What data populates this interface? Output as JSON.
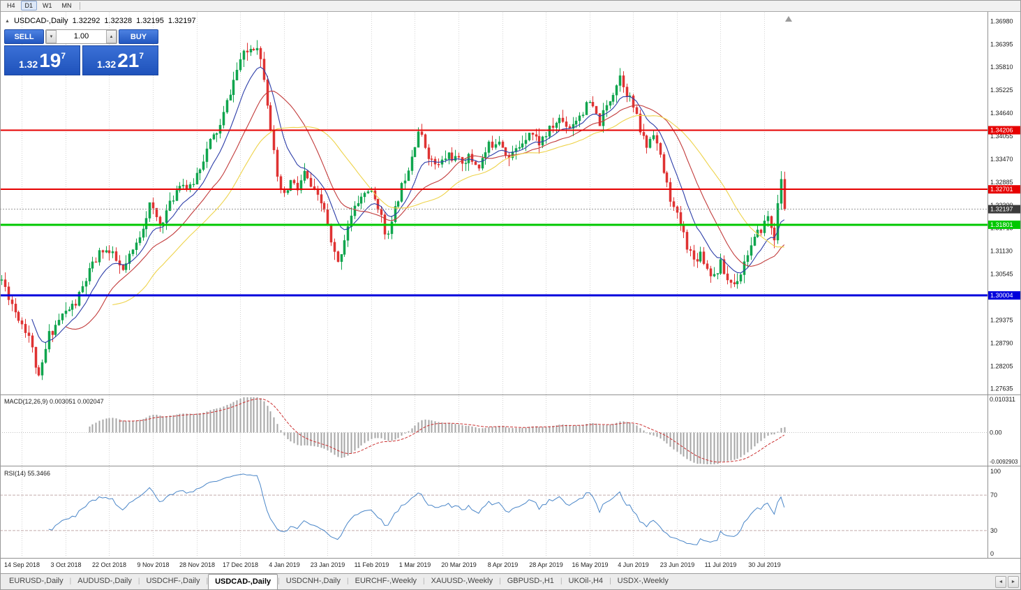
{
  "colors": {
    "up": "#10a54e",
    "down": "#df3333",
    "ma_fast": "#2c3da8",
    "ma_mid": "#c23b3b",
    "ma_slow": "#eed34a",
    "rsi_line": "#4a86c8",
    "rsi_levels": "#c4aaaa",
    "macd_hist": "#a6a6a6",
    "macd_signal": "#cc3333",
    "grid": "#d2d2d2",
    "bid_line": "#9a9a9a",
    "current_badge": "#3c3c3c",
    "separator": "#909090"
  },
  "toolbar": {
    "periods": [
      {
        "label": "H4",
        "active": false
      },
      {
        "label": "D1",
        "active": true
      },
      {
        "label": "W1",
        "active": false
      },
      {
        "label": "MN",
        "active": false
      }
    ]
  },
  "icons": {
    "symbol_marker": "▲",
    "volume_up": "▲",
    "volume_down": "▼"
  },
  "chart_header": {
    "symbol": "USDCAD-,Daily",
    "open": "1.32292",
    "high": "1.32328",
    "low": "1.32195",
    "close": "1.32197"
  },
  "trade_panel": {
    "sell_label": "SELL",
    "buy_label": "BUY",
    "volume": "1.00",
    "sell_price": {
      "prefix": "1.32",
      "big": "19",
      "sup": "7"
    },
    "buy_price": {
      "prefix": "1.32",
      "big": "21",
      "sup": "7"
    }
  },
  "price_axis": {
    "ticks": [
      "1.36980",
      "1.36395",
      "1.35810",
      "1.35225",
      "1.34640",
      "1.34055",
      "1.33470",
      "1.32885",
      "1.32300",
      "1.31715",
      "1.31130",
      "1.30545",
      "1.29960",
      "1.29375",
      "1.28790",
      "1.28205",
      "1.27635"
    ]
  },
  "macd_panel": {
    "title": "MACD(12,26,9) 0.003051 0.002047",
    "axis_max_label": "0.010311",
    "axis_zero_label": "0.00",
    "axis_min_label": "-0.0092903"
  },
  "rsi_panel": {
    "title": "RSI(14) 55.3466",
    "axis_labels": [
      100,
      70,
      30,
      0
    ]
  },
  "date_axis": {
    "labels": [
      "14 Sep 2018",
      "3 Oct 2018",
      "22 Oct 2018",
      "9 Nov 2018",
      "28 Nov 2018",
      "17 Dec 2018",
      "4 Jan 2019",
      "23 Jan 2019",
      "11 Feb 2019",
      "1 Mar 2019",
      "20 Mar 2019",
      "8 Apr 2019",
      "28 Apr 2019",
      "16 May 2019",
      "4 Jun 2019",
      "23 Jun 2019",
      "11 Jul 2019",
      "30 Jul 2019"
    ]
  },
  "tabs": {
    "active_index": 3,
    "scroll_left": "◄",
    "scroll_right": "►",
    "items": [
      "EURUSD-,Daily",
      "AUDUSD-,Daily",
      "USDCHF-,Daily",
      "USDCAD-,Daily",
      "USDCNH-,Daily",
      "EURCHF-,Weekly",
      "XAUUSD-,Weekly",
      "GBPUSD-,H1",
      "UKOil-,H4",
      "USDX-,Weekly"
    ]
  },
  "chart_data": {
    "type": "candlestick",
    "symbol": "USDCAD",
    "timeframe": "Daily",
    "last_ohlc": {
      "open": 1.32292,
      "high": 1.32328,
      "low": 1.32195,
      "close": 1.32197
    },
    "n_candles": 234,
    "total_slots": 294,
    "price_top": 1.372,
    "price_bottom": 1.275,
    "seed": 11,
    "noise": 0.0013,
    "wick": 0.0022,
    "close_waypoints": [
      [
        0,
        1.304
      ],
      [
        4,
        1.296
      ],
      [
        8,
        1.29
      ],
      [
        11,
        1.2785
      ],
      [
        14,
        1.29
      ],
      [
        18,
        1.295
      ],
      [
        22,
        1.298
      ],
      [
        26,
        1.306
      ],
      [
        30,
        1.312
      ],
      [
        33,
        1.31
      ],
      [
        36,
        1.306
      ],
      [
        40,
        1.313
      ],
      [
        44,
        1.323
      ],
      [
        47,
        1.318
      ],
      [
        50,
        1.323
      ],
      [
        53,
        1.329
      ],
      [
        56,
        1.327
      ],
      [
        59,
        1.333
      ],
      [
        62,
        1.339
      ],
      [
        65,
        1.343
      ],
      [
        68,
        1.352
      ],
      [
        71,
        1.36
      ],
      [
        74,
        1.363
      ],
      [
        76,
        1.364
      ],
      [
        78,
        1.356
      ],
      [
        80,
        1.343
      ],
      [
        82,
        1.329
      ],
      [
        84,
        1.325
      ],
      [
        86,
        1.329
      ],
      [
        88,
        1.327
      ],
      [
        90,
        1.331
      ],
      [
        93,
        1.326
      ],
      [
        96,
        1.322
      ],
      [
        98,
        1.313
      ],
      [
        100,
        1.308
      ],
      [
        103,
        1.318
      ],
      [
        106,
        1.324
      ],
      [
        109,
        1.327
      ],
      [
        112,
        1.323
      ],
      [
        114,
        1.316
      ],
      [
        116,
        1.318
      ],
      [
        118,
        1.325
      ],
      [
        121,
        1.333
      ],
      [
        124,
        1.342
      ],
      [
        126,
        1.338
      ],
      [
        128,
        1.334
      ],
      [
        130,
        1.333
      ],
      [
        133,
        1.336
      ],
      [
        136,
        1.334
      ],
      [
        139,
        1.335
      ],
      [
        142,
        1.333
      ],
      [
        145,
        1.338
      ],
      [
        148,
        1.34
      ],
      [
        151,
        1.335
      ],
      [
        154,
        1.338
      ],
      [
        157,
        1.342
      ],
      [
        160,
        1.339
      ],
      [
        163,
        1.342
      ],
      [
        166,
        1.345
      ],
      [
        169,
        1.343
      ],
      [
        172,
        1.346
      ],
      [
        175,
        1.349
      ],
      [
        178,
        1.344
      ],
      [
        181,
        1.35
      ],
      [
        184,
        1.356
      ],
      [
        186,
        1.352
      ],
      [
        188,
        1.348
      ],
      [
        190,
        1.342
      ],
      [
        192,
        1.338
      ],
      [
        194,
        1.342
      ],
      [
        196,
        1.335
      ],
      [
        198,
        1.328
      ],
      [
        200,
        1.322
      ],
      [
        202,
        1.318
      ],
      [
        204,
        1.313
      ],
      [
        206,
        1.309
      ],
      [
        208,
        1.311
      ],
      [
        210,
        1.307
      ],
      [
        212,
        1.305
      ],
      [
        214,
        1.308
      ],
      [
        216,
        1.304
      ],
      [
        218,
        1.303
      ],
      [
        220,
        1.306
      ],
      [
        222,
        1.311
      ],
      [
        224,
        1.314
      ],
      [
        226,
        1.317
      ],
      [
        228,
        1.32
      ],
      [
        230,
        1.315
      ],
      [
        232,
        1.33
      ],
      [
        233,
        1.32197
      ]
    ],
    "moving_averages": [
      {
        "type": "ema",
        "period": 10,
        "color_key": "ma_fast"
      },
      {
        "type": "sma",
        "period": 20,
        "color_key": "ma_mid"
      },
      {
        "type": "sma",
        "period": 34,
        "color_key": "ma_slow"
      }
    ],
    "hlines": [
      {
        "value": 1.34206,
        "label": "1.34206",
        "color": "#e60000",
        "width": 2
      },
      {
        "value": 1.32701,
        "label": "1.32701",
        "color": "#e60000",
        "width": 2
      },
      {
        "value": 1.31801,
        "label": "1.31801",
        "color": "#00c800",
        "width": 3
      },
      {
        "value": 1.30004,
        "label": "1.30004",
        "color": "#0000dc",
        "width": 3
      }
    ],
    "current_price": {
      "value": 1.32197,
      "label": "1.32197"
    },
    "macd": {
      "fast": 12,
      "slow": 26,
      "signal": 9,
      "scale_max": 0.010311,
      "scale_min": -0.0092903,
      "current_macd": 0.003051,
      "current_signal": 0.002047
    },
    "rsi": {
      "period": 14,
      "levels": [
        70,
        30
      ],
      "current": 55.3466
    }
  }
}
